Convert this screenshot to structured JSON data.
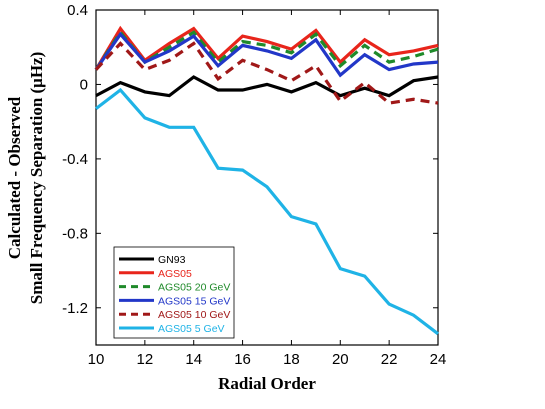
{
  "chart_data": {
    "type": "line",
    "xlabel": "Radial Order",
    "ylabel_line1": "Calculated - Observed",
    "ylabel_line2": "Small Frequency Separation (μHz)",
    "xlim": [
      10,
      24
    ],
    "ylim": [
      -1.4,
      0.4
    ],
    "xticks": [
      "10",
      "12",
      "14",
      "16",
      "18",
      "20",
      "22",
      "24"
    ],
    "yticks": [
      "0.4",
      "0",
      "-0.4",
      "-0.8",
      "-1.2"
    ],
    "grid": false,
    "legend_position": "bottom-left",
    "x": [
      10,
      11,
      12,
      13,
      14,
      15,
      16,
      17,
      18,
      19,
      20,
      21,
      22,
      23,
      24
    ],
    "series": [
      {
        "name": "GN93",
        "color": "#000000",
        "dash": "solid",
        "values": [
          -0.06,
          0.01,
          -0.04,
          -0.06,
          0.04,
          -0.03,
          -0.03,
          0.0,
          -0.04,
          0.01,
          -0.06,
          -0.02,
          -0.06,
          0.02,
          0.04
        ]
      },
      {
        "name": "AGS05",
        "color": "#e8251b",
        "dash": "solid",
        "values": [
          0.08,
          0.3,
          0.13,
          0.22,
          0.3,
          0.14,
          0.26,
          0.23,
          0.19,
          0.29,
          0.12,
          0.24,
          0.16,
          0.18,
          0.21
        ]
      },
      {
        "name": "AGS05 20 GeV",
        "color": "#1f8a2a",
        "dash": "dashed",
        "values": [
          0.08,
          0.28,
          0.12,
          0.2,
          0.28,
          0.12,
          0.23,
          0.21,
          0.17,
          0.27,
          0.1,
          0.21,
          0.12,
          0.15,
          0.19
        ]
      },
      {
        "name": "AGS05 15 GeV",
        "color": "#2237c8",
        "dash": "solid",
        "values": [
          0.08,
          0.27,
          0.12,
          0.18,
          0.26,
          0.1,
          0.21,
          0.18,
          0.14,
          0.24,
          0.05,
          0.16,
          0.08,
          0.11,
          0.12
        ]
      },
      {
        "name": "AGS05 10 GeV",
        "color": "#a01818",
        "dash": "dashed",
        "values": [
          0.08,
          0.22,
          0.08,
          0.13,
          0.22,
          0.03,
          0.13,
          0.08,
          0.02,
          0.1,
          -0.09,
          0.01,
          -0.1,
          -0.08,
          -0.1
        ]
      },
      {
        "name": "AGS05 5 GeV",
        "color": "#1fb3e6",
        "dash": "solid",
        "values": [
          -0.13,
          -0.03,
          -0.18,
          -0.23,
          -0.23,
          -0.45,
          -0.46,
          -0.55,
          -0.71,
          -0.75,
          -0.99,
          -1.03,
          -1.18,
          -1.24,
          -1.34
        ]
      }
    ]
  }
}
